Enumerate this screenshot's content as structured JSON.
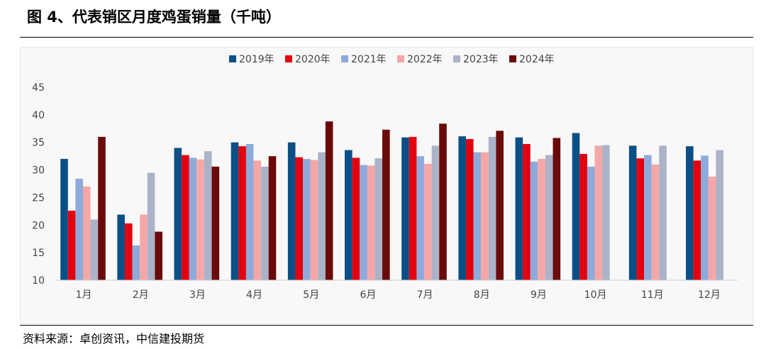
{
  "header": {
    "title": "图 4、代表销区月度鸡蛋销量（千吨）"
  },
  "footer": {
    "source": "资料来源：卓创资讯，中信建投期货"
  },
  "chart_data": {
    "type": "bar",
    "title": "图 4、代表销区月度鸡蛋销量（千吨）",
    "xlabel": "",
    "ylabel": "",
    "ylim": [
      10,
      45
    ],
    "yticks": [
      10,
      15,
      20,
      25,
      30,
      35,
      40,
      45
    ],
    "grid": false,
    "legend_position": "top",
    "categories": [
      "1月",
      "2月",
      "3月",
      "4月",
      "5月",
      "6月",
      "7月",
      "8月",
      "9月",
      "10月",
      "11月",
      "12月"
    ],
    "series": [
      {
        "name": "2019年",
        "color": "#0b4f86",
        "values": [
          32.0,
          21.9,
          34.0,
          35.0,
          35.0,
          33.6,
          35.9,
          36.1,
          35.9,
          36.7,
          34.4,
          34.3
        ]
      },
      {
        "name": "2020年",
        "color": "#e3000f",
        "values": [
          22.6,
          20.3,
          32.7,
          34.3,
          32.3,
          32.2,
          36.0,
          35.6,
          34.7,
          32.9,
          32.1,
          31.7
        ]
      },
      {
        "name": "2021年",
        "color": "#8eaadb",
        "values": [
          28.4,
          16.3,
          32.2,
          34.7,
          32.0,
          30.9,
          32.5,
          33.2,
          31.5,
          30.6,
          32.7,
          32.6
        ]
      },
      {
        "name": "2022年",
        "color": "#f5a7a7",
        "values": [
          27.0,
          21.9,
          31.9,
          31.7,
          31.8,
          30.8,
          31.1,
          33.2,
          32.0,
          34.4,
          31.0,
          28.8
        ]
      },
      {
        "name": "2023年",
        "color": "#aab3c8",
        "values": [
          21.0,
          29.5,
          33.4,
          30.6,
          33.2,
          32.1,
          34.4,
          36.0,
          32.7,
          34.5,
          34.4,
          33.6
        ]
      },
      {
        "name": "2024年",
        "color": "#6b0a0a",
        "values": [
          36.0,
          18.8,
          30.6,
          32.5,
          38.8,
          37.3,
          38.4,
          37.1,
          35.8,
          null,
          null,
          null
        ]
      }
    ]
  }
}
